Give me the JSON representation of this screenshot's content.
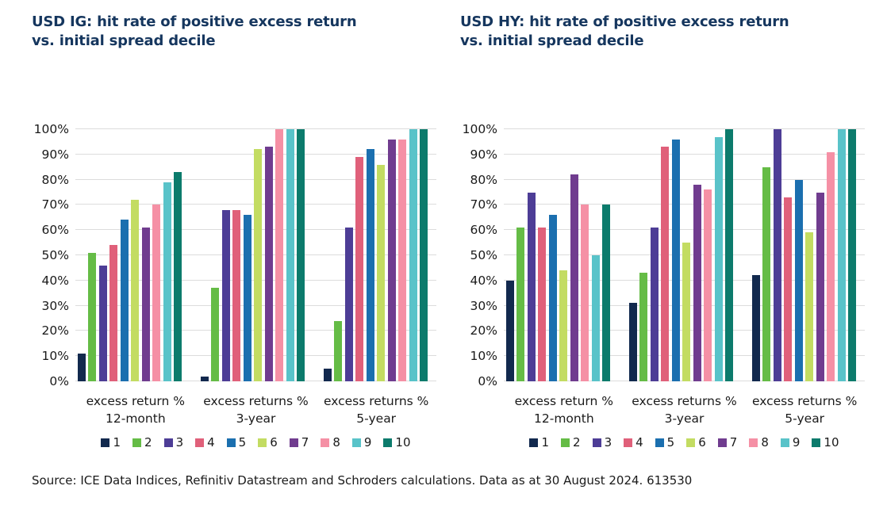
{
  "source_line": "Source: ICE Data Indices, Refinitiv Datastream and Schroders calculations. Data as at 30 August 2024. 613530",
  "colors": {
    "title": "#15365E",
    "gridline": "#DCDCDC",
    "text": "#1A1A1A",
    "background": "#FFFFFF"
  },
  "legend": {
    "labels": [
      "1",
      "2",
      "3",
      "4",
      "5",
      "6",
      "7",
      "8",
      "9",
      "10"
    ],
    "colors": [
      "#12294E",
      "#65BC46",
      "#4D3D96",
      "#E0607A",
      "#1B6FAF",
      "#C3DC62",
      "#703C8F",
      "#F590A5",
      "#59C3C9",
      "#0C7B6C"
    ]
  },
  "chart_data": [
    {
      "type": "bar",
      "title": "USD IG: hit rate of positive excess return vs. initial spread decile",
      "title_lines": [
        "USD IG: hit rate of positive excess return",
        "vs. initial spread decile"
      ],
      "xlabel": "",
      "ylabel": "",
      "ylim": [
        0,
        100
      ],
      "grid": true,
      "legend_position": "bottom",
      "yticks": [
        "0%",
        "10%",
        "20%",
        "30%",
        "40%",
        "50%",
        "60%",
        "70%",
        "80%",
        "90%",
        "100%"
      ],
      "categories": [
        [
          "excess return %",
          "12-month"
        ],
        [
          "excess returns %",
          "3-year"
        ],
        [
          "excess returns %",
          "5-year"
        ]
      ],
      "series": [
        {
          "name": "1",
          "values": [
            11,
            2,
            5
          ]
        },
        {
          "name": "2",
          "values": [
            51,
            37,
            24
          ]
        },
        {
          "name": "3",
          "values": [
            46,
            68,
            61
          ]
        },
        {
          "name": "4",
          "values": [
            54,
            68,
            89
          ]
        },
        {
          "name": "5",
          "values": [
            64,
            66,
            92
          ]
        },
        {
          "name": "6",
          "values": [
            72,
            92,
            86
          ]
        },
        {
          "name": "7",
          "values": [
            61,
            93,
            96
          ]
        },
        {
          "name": "8",
          "values": [
            70,
            100,
            96
          ]
        },
        {
          "name": "9",
          "values": [
            79,
            100,
            100
          ]
        },
        {
          "name": "10",
          "values": [
            83,
            100,
            100
          ]
        }
      ]
    },
    {
      "type": "bar",
      "title": "USD HY: hit rate of positive excess return vs. initial spread decile",
      "title_lines": [
        "USD HY: hit rate of positive excess return",
        "vs. initial spread decile"
      ],
      "xlabel": "",
      "ylabel": "",
      "ylim": [
        0,
        100
      ],
      "grid": true,
      "legend_position": "bottom",
      "yticks": [
        "0%",
        "10%",
        "20%",
        "30%",
        "40%",
        "50%",
        "60%",
        "70%",
        "80%",
        "90%",
        "100%"
      ],
      "categories": [
        [
          "excess return %",
          "12-month"
        ],
        [
          "excess returns %",
          "3-year"
        ],
        [
          "excess returns %",
          "5-year"
        ]
      ],
      "series": [
        {
          "name": "1",
          "values": [
            40,
            31,
            42
          ]
        },
        {
          "name": "2",
          "values": [
            61,
            43,
            85
          ]
        },
        {
          "name": "3",
          "values": [
            75,
            61,
            100
          ]
        },
        {
          "name": "4",
          "values": [
            61,
            93,
            73
          ]
        },
        {
          "name": "5",
          "values": [
            66,
            96,
            80
          ]
        },
        {
          "name": "6",
          "values": [
            44,
            55,
            59
          ]
        },
        {
          "name": "7",
          "values": [
            82,
            78,
            75
          ]
        },
        {
          "name": "8",
          "values": [
            70,
            76,
            91
          ]
        },
        {
          "name": "9",
          "values": [
            50,
            97,
            100
          ]
        },
        {
          "name": "10",
          "values": [
            70,
            100,
            100
          ]
        }
      ]
    }
  ]
}
